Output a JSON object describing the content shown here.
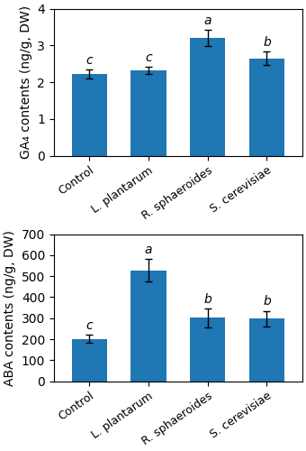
{
  "chart_data": [
    {
      "type": "bar",
      "categories": [
        "Control",
        "L. plantarum",
        "R. sphaeroides",
        "S. cerevisiae"
      ],
      "values": [
        2.22,
        2.32,
        3.2,
        2.65
      ],
      "errors": [
        0.12,
        0.1,
        0.22,
        0.18
      ],
      "annotations": [
        "c",
        "c",
        "a",
        "b"
      ],
      "ylabel": "GA₄ contents (ng/g, DW)",
      "ylim": [
        0,
        4
      ],
      "yticks": [
        0,
        1,
        2,
        3,
        4
      ],
      "grid": false
    },
    {
      "type": "bar",
      "categories": [
        "Control",
        "L. plantarum",
        "R. sphaeroides",
        "S. cerevisiae"
      ],
      "values": [
        202,
        528,
        302,
        297
      ],
      "errors": [
        20,
        55,
        45,
        38
      ],
      "annotations": [
        "c",
        "a",
        "b",
        "b"
      ],
      "ylabel": "ABA contents (ng/g, DW)",
      "ylim": [
        0,
        700
      ],
      "yticks": [
        0,
        100,
        200,
        300,
        400,
        500,
        600,
        700
      ],
      "grid": false
    }
  ]
}
